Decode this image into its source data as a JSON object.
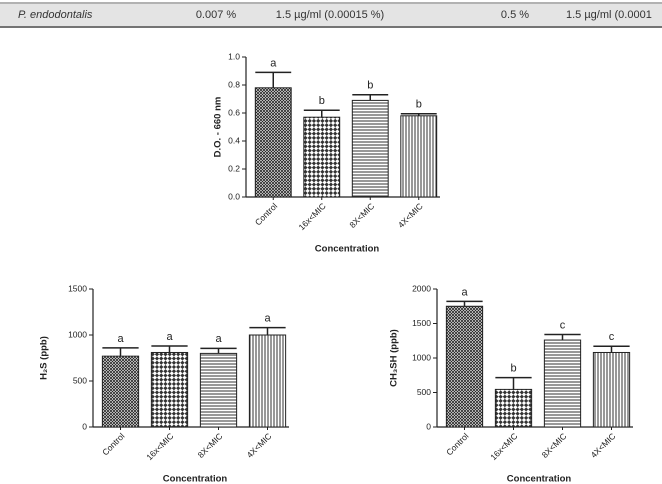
{
  "table": {
    "rows": [
      [
        "P. endodontalis",
        "0.007 %",
        "1.5 µg/ml (0.00015 %)",
        "0.5 %",
        "1.5 µg/ml (0.0001"
      ]
    ]
  },
  "chart_data": [
    {
      "type": "bar",
      "ylabel": "D.O. - 660 nm",
      "xlabel": "Concentration",
      "categories": [
        "Control",
        "16x<MIC",
        "8X<MIC",
        "4X<MIC"
      ],
      "values": [
        0.78,
        0.57,
        0.69,
        0.58
      ],
      "errors": [
        0.11,
        0.05,
        0.04,
        0.015
      ],
      "letters": [
        "a",
        "b",
        "b",
        "b"
      ],
      "patterns": [
        "crosshatch",
        "checker",
        "horizontal",
        "vertical"
      ],
      "ylim": [
        0,
        1.0
      ],
      "yticks": [
        {
          "value": 0,
          "label": "0.0"
        },
        0.2,
        0.4,
        0.6,
        0.8,
        {
          "value": 1.0,
          "label": "1.0"
        }
      ],
      "grid": false
    },
    {
      "type": "bar",
      "ylabel": "H₂S (ppb)",
      "xlabel": "Concentration",
      "categories": [
        "Control",
        "16x<MIC",
        "8X<MIC",
        "4X<MIC"
      ],
      "values": [
        770,
        810,
        800,
        1000
      ],
      "errors": [
        90,
        70,
        55,
        80
      ],
      "letters": [
        "a",
        "a",
        "a",
        "a"
      ],
      "patterns": [
        "crosshatch",
        "checker",
        "horizontal",
        "vertical"
      ],
      "ylim": [
        0,
        1500
      ],
      "yticks": [
        0,
        500,
        1000,
        1500
      ],
      "grid": false
    },
    {
      "type": "bar",
      "ylabel": "CH₃SH (ppb)",
      "xlabel": "Concentration",
      "categories": [
        "Control",
        "16x<MIC",
        "8X<MIC",
        "4X<MIC"
      ],
      "values": [
        1750,
        545,
        1260,
        1080
      ],
      "errors": [
        70,
        170,
        80,
        90
      ],
      "letters": [
        "a",
        "b",
        "c",
        "c"
      ],
      "patterns": [
        "crosshatch",
        "checker",
        "horizontal",
        "vertical"
      ],
      "ylim": [
        0,
        2000
      ],
      "yticks": [
        0,
        500,
        1000,
        1500,
        2000
      ],
      "grid": false
    }
  ]
}
